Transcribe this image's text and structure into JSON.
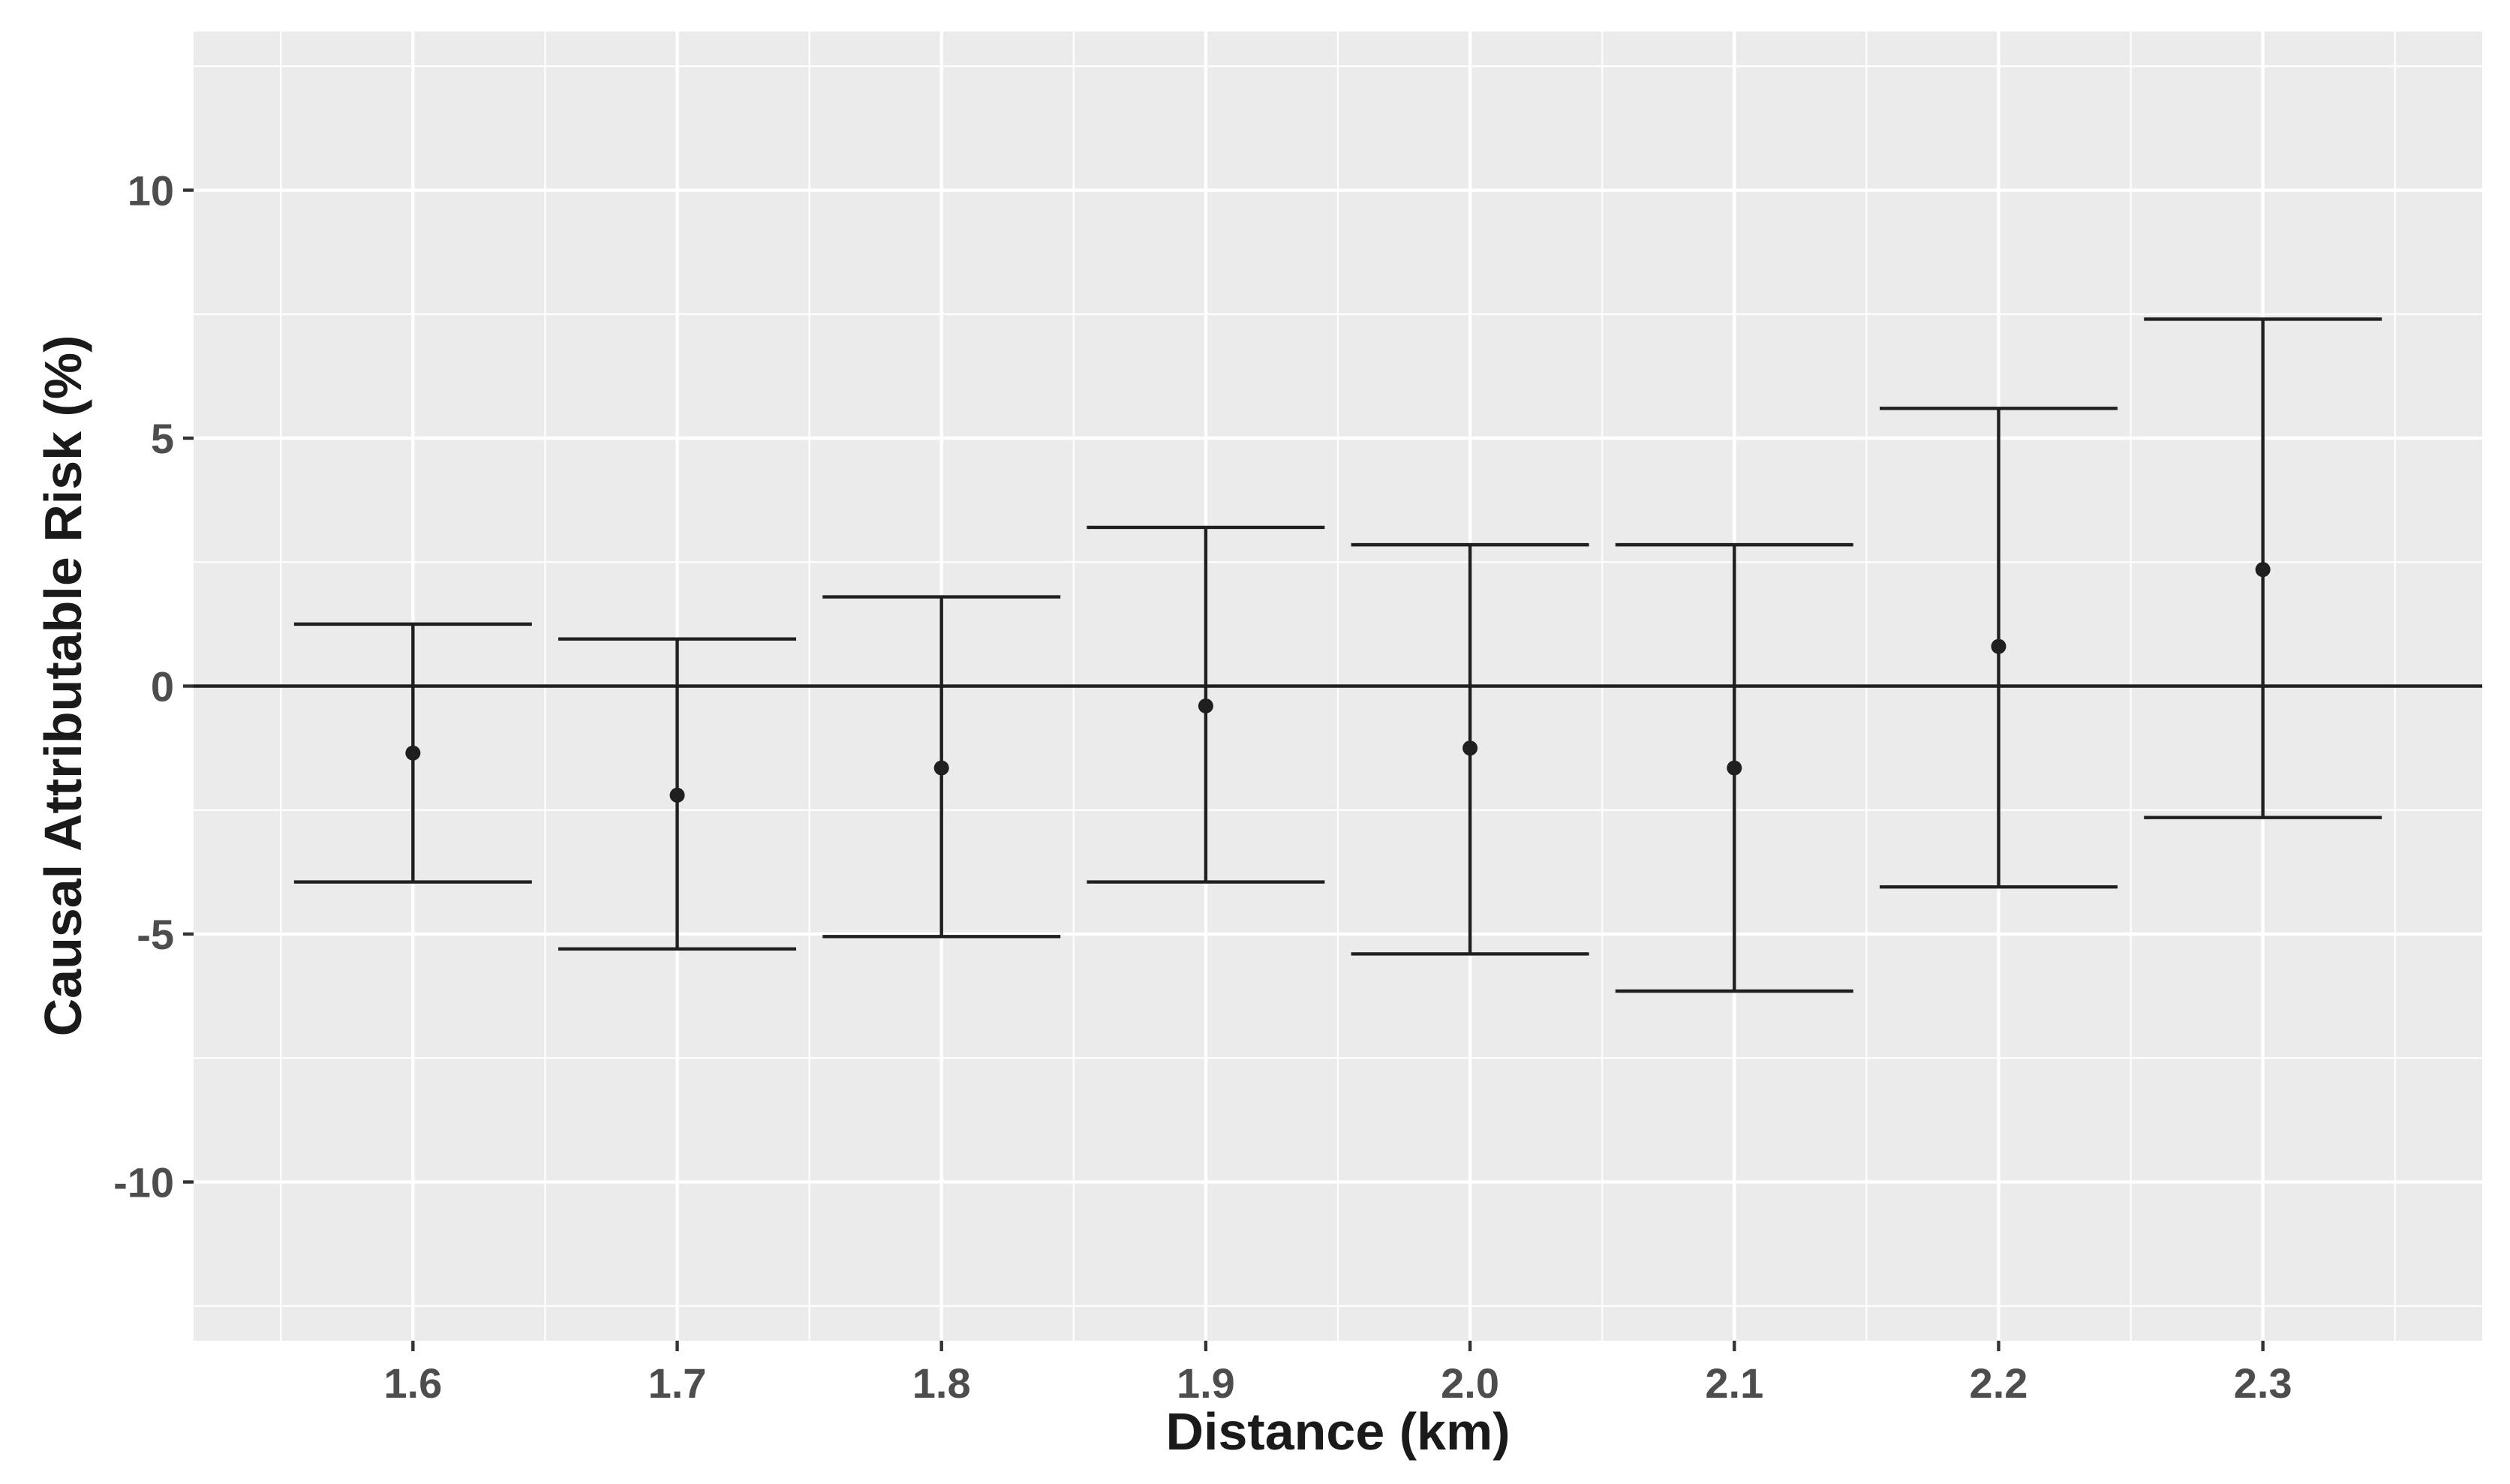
{
  "chart_data": {
    "type": "errorbar",
    "xlabel": "Distance (km)",
    "ylabel": "Causal Attributable Risk (%)",
    "x": [
      1.6,
      1.7,
      1.8,
      1.9,
      2.0,
      2.1,
      2.2,
      2.3
    ],
    "x_tick_labels": [
      "1.6",
      "1.7",
      "1.8",
      "1.9",
      "2.0",
      "2.1",
      "2.2",
      "2.3"
    ],
    "y_ticks": [
      10,
      5,
      0,
      -5,
      -10
    ],
    "y_tick_labels": [
      "10",
      "5",
      "0",
      "-5",
      "-10"
    ],
    "xlim": [
      1.517,
      2.383
    ],
    "ylim": [
      -13.2,
      13.2
    ],
    "estimate": [
      -1.35,
      -2.2,
      -1.65,
      -0.4,
      -1.25,
      -1.65,
      0.8,
      2.35
    ],
    "lower": [
      -3.95,
      -5.3,
      -5.05,
      -3.95,
      -5.4,
      -6.15,
      -4.05,
      -2.65
    ],
    "upper": [
      1.25,
      0.95,
      1.8,
      3.2,
      2.85,
      2.85,
      5.6,
      7.4
    ],
    "reference_line": 0,
    "grid": true,
    "colors": {
      "panel": "#ebebeb",
      "grid": "#ffffff",
      "mark": "#1f1f1f"
    }
  }
}
